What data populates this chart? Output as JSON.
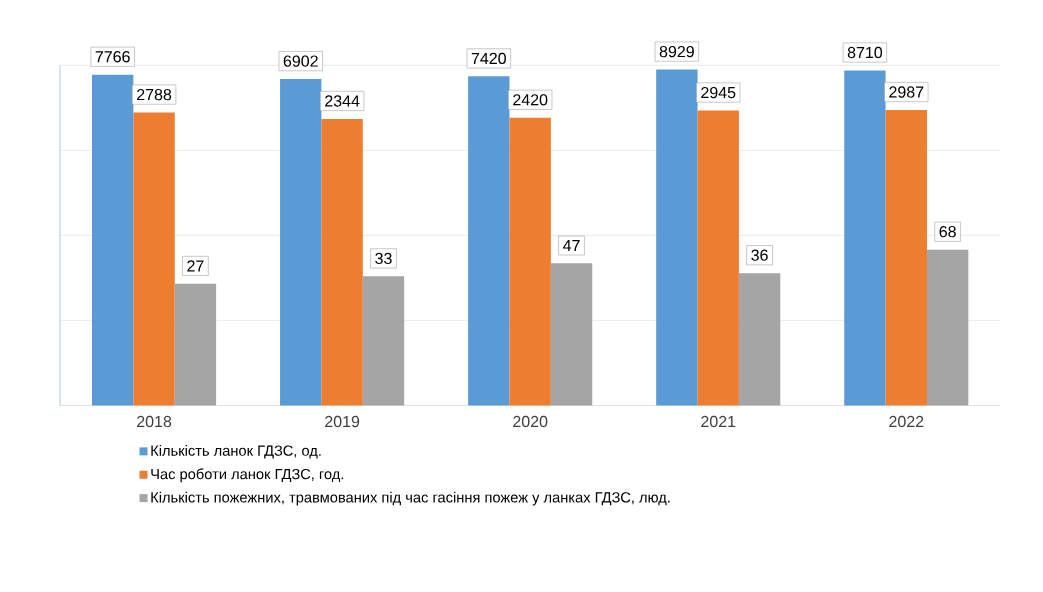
{
  "chart_data": {
    "type": "bar",
    "categories": [
      "2018",
      "2019",
      "2020",
      "2021",
      "2022"
    ],
    "series": [
      {
        "name": "Кількість ланок ГДЗС, од.",
        "color": "#5b9bd5",
        "values": [
          7766,
          6902,
          7420,
          8929,
          8710
        ]
      },
      {
        "name": "Час роботи ланок ГДЗС, год.",
        "color": "#ed7d31",
        "values": [
          2788,
          2344,
          2420,
          2945,
          2987
        ]
      },
      {
        "name": "Кількість пожежних, травмованих під час гасіння пожеж у ланках ГДЗС, люд.",
        "color": "#a5a5a5",
        "values": [
          27,
          33,
          47,
          36,
          68
        ]
      }
    ],
    "log": true,
    "ylim": [
      1,
      10000
    ],
    "yticks": [
      {
        "value": 1,
        "label": null
      },
      {
        "value": 10,
        "label": null
      },
      {
        "value": 100,
        "label": null
      },
      {
        "value": 1000,
        "label": null
      },
      {
        "value": 10000,
        "label": null
      }
    ],
    "tick_labels": "x",
    "grid": "y",
    "legend": "bottom",
    "data_labels": true
  }
}
